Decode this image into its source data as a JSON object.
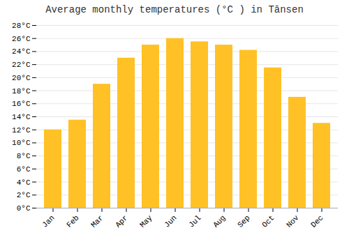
{
  "chart_data": {
    "type": "bar",
    "title": "Average monthly temperatures (°C ) in Tānsen",
    "categories": [
      "Jan",
      "Feb",
      "Mar",
      "Apr",
      "May",
      "Jun",
      "Jul",
      "Aug",
      "Sep",
      "Oct",
      "Nov",
      "Dec"
    ],
    "values": [
      12.0,
      13.5,
      19.0,
      23.0,
      25.0,
      26.0,
      25.5,
      25.0,
      24.2,
      21.5,
      17.0,
      13.0
    ],
    "color": "#FFC125",
    "ylim": [
      0,
      28
    ],
    "yticks": [
      {
        "value": 0,
        "label": "0°C"
      },
      {
        "value": 2,
        "label": "2°C"
      },
      {
        "value": 4,
        "label": "4°C"
      },
      {
        "value": 6,
        "label": "6°C"
      },
      {
        "value": 8,
        "label": "8°C"
      },
      {
        "value": 10,
        "label": "10°C"
      },
      {
        "value": 12,
        "label": "12°C"
      },
      {
        "value": 14,
        "label": "14°C"
      },
      {
        "value": 16,
        "label": "16°C"
      },
      {
        "value": 18,
        "label": "18°C"
      },
      {
        "value": 20,
        "label": "20°C"
      },
      {
        "value": 22,
        "label": "22°C"
      },
      {
        "value": 24,
        "label": "24°C"
      },
      {
        "value": 26,
        "label": "26°C"
      },
      {
        "value": 28,
        "label": "28°C"
      }
    ],
    "grid": true
  }
}
